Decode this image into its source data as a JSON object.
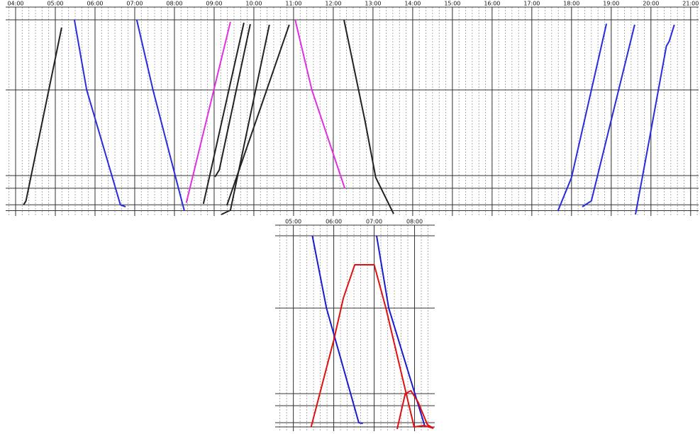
{
  "chart_data": [
    {
      "type": "line",
      "xlim": [
        3.75,
        21.2
      ],
      "ylim": [
        0,
        100
      ],
      "xticks": [
        {
          "value": 4,
          "label": "04:00"
        },
        {
          "value": 5,
          "label": "05:00"
        },
        {
          "value": 6,
          "label": "06:00"
        },
        {
          "value": 7,
          "label": "07:00"
        },
        {
          "value": 8,
          "label": "08:00"
        },
        {
          "value": 9,
          "label": "09:00"
        },
        {
          "value": 10,
          "label": "10:00"
        },
        {
          "value": 11,
          "label": "11:00"
        },
        {
          "value": 12,
          "label": "12:00"
        },
        {
          "value": 13,
          "label": "13:00"
        },
        {
          "value": 14,
          "label": "14:00"
        },
        {
          "value": 15,
          "label": "15:00"
        },
        {
          "value": 16,
          "label": "16:00"
        },
        {
          "value": 17,
          "label": "17:00"
        },
        {
          "value": 18,
          "label": "18:00"
        },
        {
          "value": 19,
          "label": "19:00"
        },
        {
          "value": 20,
          "label": "20:00"
        },
        {
          "value": 21,
          "label": "21:00"
        }
      ],
      "yticks": [
        100,
        64,
        20,
        13.5,
        5,
        2
      ],
      "series": [
        {
          "color": "#222222",
          "x": [
            4.2,
            4.26,
            5.16
          ],
          "values": [
            5,
            7,
            96
          ]
        },
        {
          "color": "#2a2ae0",
          "x": [
            5.48,
            5.79,
            6.64,
            6.77
          ],
          "values": [
            100,
            64,
            5,
            4
          ]
        },
        {
          "color": "#2a2ae0",
          "x": [
            7.05,
            7.46,
            8.21,
            8.25
          ],
          "values": [
            100,
            64,
            5,
            2
          ]
        },
        {
          "color": "#e030e0",
          "x": [
            8.3,
            9.41
          ],
          "values": [
            6,
            99
          ]
        },
        {
          "color": "#222222",
          "x": [
            8.73,
            9.75
          ],
          "values": [
            5.5,
            98.5
          ]
        },
        {
          "color": "#222222",
          "x": [
            9.02,
            9.13,
            9.91
          ],
          "values": [
            19.3,
            22.9,
            97.8
          ]
        },
        {
          "color": "#222222",
          "x": [
            9.18,
            9.41,
            10.39
          ],
          "values": [
            0,
            2.2,
            97.5
          ]
        },
        {
          "color": "#222222",
          "x": [
            9.32,
            10.89
          ],
          "values": [
            4.7,
            97.5
          ]
        },
        {
          "color": "#e030e0",
          "x": [
            11.04,
            11.46,
            12.29
          ],
          "values": [
            100,
            64,
            13.5
          ]
        },
        {
          "color": "#222222",
          "x": [
            12.27,
            12.8,
            13.07,
            13.52
          ],
          "values": [
            100,
            48,
            19,
            0.4
          ]
        },
        {
          "color": "#2a2ae0",
          "x": [
            17.66,
            18.0,
            18.88
          ],
          "values": [
            2,
            19,
            98
          ]
        },
        {
          "color": "#2a2ae0",
          "x": [
            18.27,
            18.5,
            19.59
          ],
          "values": [
            4,
            7,
            97.5
          ]
        },
        {
          "color": "#2a2ae0",
          "x": [
            19.61,
            19.95,
            20.39,
            20.46,
            20.59
          ],
          "values": [
            0,
            37.5,
            86.5,
            89,
            97.5
          ]
        }
      ]
    },
    {
      "type": "line",
      "xlim": [
        4.55,
        8.5
      ],
      "ylim": [
        0,
        100
      ],
      "xticks": [
        {
          "value": 5,
          "label": "05:00"
        },
        {
          "value": 6,
          "label": "06:00"
        },
        {
          "value": 7,
          "label": "07:00"
        },
        {
          "value": 8,
          "label": "08:00"
        }
      ],
      "yticks": [
        100,
        62.6,
        18.3,
        12.1,
        3.3,
        1.1
      ],
      "series": [
        {
          "color": "#1a1ad0",
          "x": [
            5.47,
            5.82,
            6.62,
            6.72
          ],
          "values": [
            100,
            62.6,
            3.3,
            2.9
          ]
        },
        {
          "color": "#1a1ad0",
          "x": [
            7.06,
            7.36,
            8.26
          ],
          "values": [
            100,
            62.6,
            1.1
          ]
        },
        {
          "color": "#e01010",
          "x": [
            5.44,
            6.0,
            6.24,
            6.52,
            7.0,
            7.29,
            7.99,
            8.23,
            8.47
          ],
          "values": [
            1.1,
            46,
            68,
            85,
            85,
            62.6,
            1.1,
            1.8,
            0.4
          ]
        },
        {
          "color": "#e01010",
          "x": [
            7.57,
            7.77,
            7.91,
            8.09,
            8.32,
            8.47
          ],
          "values": [
            0,
            18.3,
            19.8,
            13.9,
            2.2,
            0.4
          ]
        }
      ]
    }
  ]
}
